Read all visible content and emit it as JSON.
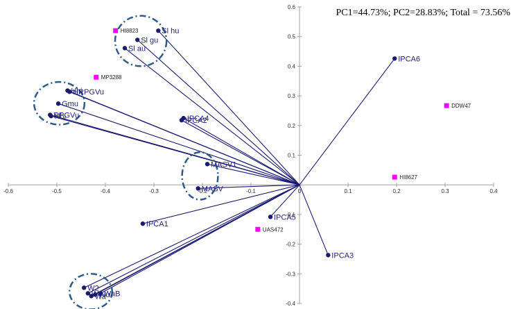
{
  "chart_data": {
    "type": "scatter",
    "subtype": "pca-biplot",
    "title": "PC1=44.73%; PC2=28.83%; Total = 73.56%",
    "xlabel": "",
    "ylabel": "",
    "xlim": [
      -0.6,
      0.4
    ],
    "ylim": [
      -0.4,
      0.6
    ],
    "x_ticks": [
      "-0.6",
      "-0.5",
      "-0.4",
      "-0.3",
      "-0.2",
      "-0.1",
      "0",
      "0.1",
      "0.2",
      "0.3",
      "0.4"
    ],
    "y_ticks": [
      "-0.4",
      "-0.3",
      "-0.2",
      "-0.1",
      "0",
      "0.1",
      "0.2",
      "0.3",
      "0.4",
      "0.5",
      "0.6"
    ],
    "grid": false,
    "colors": {
      "vector": "#1a1a6e",
      "sample": "#ff00ff",
      "cluster_ring": "#2e5a8a",
      "axis": "#a0a0a0"
    },
    "series": [
      {
        "name": "Variables",
        "marker": "circle",
        "points": [
          {
            "label": "Sl hu",
            "x": -0.291,
            "y": 0.52
          },
          {
            "label": "Sl gu",
            "x": -0.334,
            "y": 0.489
          },
          {
            "label": "Sl au",
            "x": -0.36,
            "y": 0.461
          },
          {
            "label": "Hhi",
            "x": -0.478,
            "y": 0.318
          },
          {
            "label": "HRPGVu",
            "x": -0.474,
            "y": 0.314
          },
          {
            "label": "Gmu",
            "x": -0.497,
            "y": 0.274
          },
          {
            "label": "RPGVu",
            "x": -0.514,
            "y": 0.236
          },
          {
            "label": "Hhi",
            "x": -0.512,
            "y": 0.232
          },
          {
            "label": "IPCA4",
            "x": -0.239,
            "y": 0.225
          },
          {
            "label": "IPCA2",
            "x": -0.243,
            "y": 0.218
          },
          {
            "label": "MASV1",
            "x": -0.19,
            "y": 0.07
          },
          {
            "label": "MASV",
            "x": -0.209,
            "y": -0.012
          },
          {
            "label": "IPCA1",
            "x": -0.323,
            "y": -0.131
          },
          {
            "label": "IPCA5",
            "x": -0.06,
            "y": -0.108
          },
          {
            "label": "IPCA3",
            "x": 0.059,
            "y": -0.237
          },
          {
            "label": "IPCA6",
            "x": 0.196,
            "y": 0.426
          },
          {
            "label": "W2",
            "x": -0.444,
            "y": -0.347
          },
          {
            "label": "Wc",
            "x": -0.436,
            "y": -0.366
          },
          {
            "label": "Wa",
            "x": -0.429,
            "y": -0.375
          },
          {
            "label": "Wu",
            "x": -0.421,
            "y": -0.37
          },
          {
            "label": "WaB",
            "x": -0.41,
            "y": -0.366
          }
        ]
      },
      {
        "name": "Samples",
        "marker": "square",
        "points": [
          {
            "label": "HI8823",
            "x": -0.379,
            "y": 0.52
          },
          {
            "label": "MP3288",
            "x": -0.419,
            "y": 0.363
          },
          {
            "label": "DDW47",
            "x": 0.303,
            "y": 0.267
          },
          {
            "label": "HI8627",
            "x": 0.196,
            "y": 0.026
          },
          {
            "label": "UAS472",
            "x": -0.086,
            "y": -0.15
          }
        ]
      }
    ],
    "clusters": [
      {
        "center_x": -0.327,
        "center_y": 0.485,
        "rx": 0.053,
        "ry": 0.085
      },
      {
        "center_x": -0.495,
        "center_y": 0.275,
        "rx": 0.052,
        "ry": 0.072
      },
      {
        "center_x": -0.205,
        "center_y": 0.03,
        "rx": 0.037,
        "ry": 0.08
      },
      {
        "center_x": -0.43,
        "center_y": -0.36,
        "rx": 0.044,
        "ry": 0.06
      }
    ]
  }
}
